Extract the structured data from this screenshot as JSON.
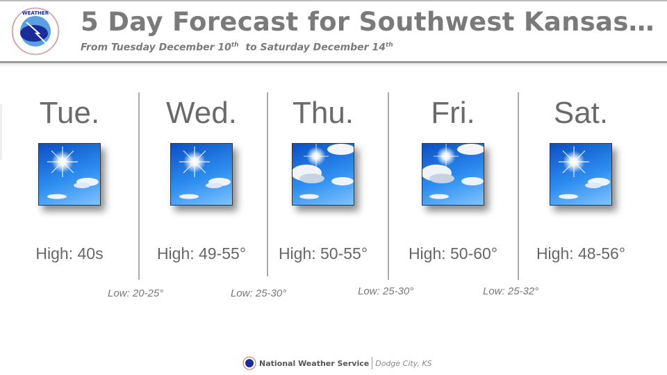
{
  "header": {
    "title": "5 Day Forecast for Southwest Kansas…",
    "subtitle_parts": [
      "From Tuesday December 10",
      "th",
      "  to Saturday December 14",
      "th"
    ],
    "logo_text": "NATIONAL WEATHER SERVICE"
  },
  "days": [
    {
      "name": "Tue.",
      "icon": "sunny-icon",
      "high": "High:  40s"
    },
    {
      "name": "Wed.",
      "icon": "sunny-icon",
      "high": "High:  49-55°"
    },
    {
      "name": "Thu.",
      "icon": "partly-cloudy-icon",
      "high": "High:  50-55°"
    },
    {
      "name": "Fri.",
      "icon": "partly-cloudy-icon",
      "high": "High:  50-60°"
    },
    {
      "name": "Sat.",
      "icon": "sunny-icon",
      "high": "High:  48-56°"
    }
  ],
  "lows": [
    "Low: 20-25°",
    "Low: 25-30°",
    "Low: 25-30°",
    "Low: 25-32°"
  ],
  "footer": {
    "org": "National Weather Service",
    "location": "Dodge City, KS"
  },
  "colors": {
    "text": "#6a6a6a",
    "sky": "#2d8ef0",
    "divider": "#aaaaaa"
  }
}
